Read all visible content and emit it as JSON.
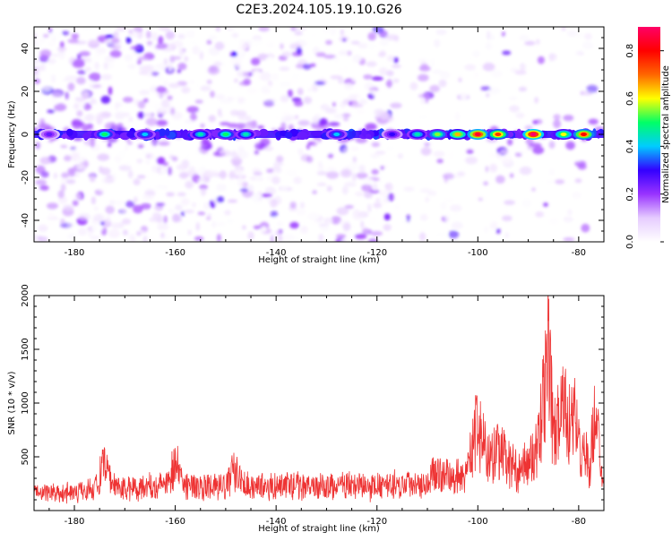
{
  "title": "C2E3.2024.105.19.10.G26",
  "chart_data": [
    {
      "type": "heatmap",
      "xlabel": "Height of straight line (km)",
      "ylabel": "Frequency (Hz)",
      "xlim": [
        -188,
        -75
      ],
      "ylim": [
        -50,
        50
      ],
      "xticks": [
        -180,
        -160,
        -140,
        -120,
        -100,
        -80
      ],
      "yticks": [
        -40,
        -20,
        0,
        20,
        40
      ],
      "colorbar": {
        "label": "Normalized spectral amplitude",
        "range": [
          0.0,
          0.9
        ],
        "ticks": [
          "0.0",
          "0.2",
          "0.4",
          "0.6",
          "0.8"
        ],
        "colormap": [
          "#ffffff",
          "#e6ccff",
          "#9933ff",
          "#3300ff",
          "#00ccff",
          "#00ff66",
          "#ffff00",
          "#ff6600",
          "#ff0000",
          "#ff0066"
        ]
      },
      "band": {
        "center_frequency": 0,
        "peaks": [
          {
            "x": -185,
            "v": 0.25
          },
          {
            "x": -174,
            "v": 0.5
          },
          {
            "x": -166,
            "v": 0.4
          },
          {
            "x": -155,
            "v": 0.45
          },
          {
            "x": -150,
            "v": 0.5
          },
          {
            "x": -146,
            "v": 0.45
          },
          {
            "x": -128,
            "v": 0.4
          },
          {
            "x": -117,
            "v": 0.3
          },
          {
            "x": -112,
            "v": 0.45
          },
          {
            "x": -108,
            "v": 0.55
          },
          {
            "x": -104,
            "v": 0.65
          },
          {
            "x": -100,
            "v": 0.85
          },
          {
            "x": -96,
            "v": 0.75
          },
          {
            "x": -89,
            "v": 0.9
          },
          {
            "x": -83,
            "v": 0.6
          },
          {
            "x": -79,
            "v": 0.8
          }
        ]
      }
    },
    {
      "type": "line",
      "xlabel": "Height of straight line (km)",
      "ylabel": "SNR (10 * v/v)",
      "xlim": [
        -188,
        -75
      ],
      "ylim": [
        0,
        2000
      ],
      "xticks": [
        -180,
        -160,
        -140,
        -120,
        -100,
        -80
      ],
      "yticks": [
        500,
        1000,
        1500,
        2000
      ],
      "color": "#ee3333",
      "series": [
        {
          "x": [
            -188,
            -185,
            -182,
            -179,
            -176,
            -174,
            -172,
            -170,
            -166,
            -162,
            -160,
            -158,
            -154,
            -150,
            -148,
            -146,
            -142,
            -138,
            -134,
            -130,
            -126,
            -122,
            -118,
            -114,
            -110,
            -108,
            -106,
            -104,
            -102,
            -101,
            -100,
            -99,
            -98,
            -96,
            -94,
            -92,
            -90,
            -88,
            -87,
            -86.5,
            -86,
            -85.5,
            -85,
            -84,
            -83,
            -82,
            -81,
            -80,
            -79,
            -78,
            -77,
            -76.5,
            -76,
            -75.5,
            -75
          ],
          "values": [
            230,
            240,
            230,
            250,
            300,
            560,
            300,
            280,
            320,
            330,
            600,
            330,
            300,
            320,
            550,
            330,
            300,
            320,
            310,
            300,
            330,
            300,
            320,
            350,
            380,
            500,
            420,
            450,
            520,
            900,
            1050,
            850,
            650,
            800,
            600,
            500,
            600,
            800,
            1400,
            1800,
            1950,
            1500,
            900,
            1100,
            1300,
            1100,
            1200,
            800,
            900,
            500,
            1050,
            1300,
            800,
            450,
            250
          ]
        }
      ]
    }
  ]
}
